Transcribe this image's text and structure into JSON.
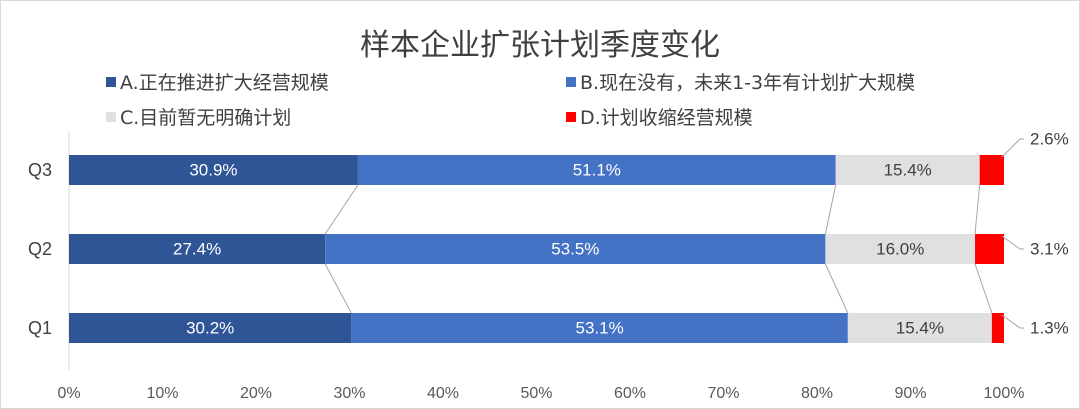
{
  "chart_data": {
    "type": "bar",
    "orientation": "horizontal",
    "stacked": true,
    "percent": true,
    "title": "样本企业扩张计划季度变化",
    "categories": [
      "Q3",
      "Q2",
      "Q1"
    ],
    "series": [
      {
        "name": "A.正在推进扩大经营规模",
        "color": "#2f5597",
        "values": [
          30.9,
          27.4,
          30.2
        ],
        "labels": [
          "30.9%",
          "27.4%",
          "30.2%"
        ]
      },
      {
        "name": "B.现在没有，未来1-3年有计划扩大规模",
        "color": "#4472c4",
        "values": [
          51.1,
          53.5,
          53.1
        ],
        "labels": [
          "51.1%",
          "53.5%",
          "53.1%"
        ]
      },
      {
        "name": "C.目前暂无明确计划",
        "color": "#e0e0e0",
        "values": [
          15.4,
          16.0,
          15.4
        ],
        "labels": [
          "15.4%",
          "16.0%",
          "15.4%"
        ]
      },
      {
        "name": "D.计划收缩经营规模",
        "color": "#ff0000",
        "values": [
          2.6,
          3.1,
          1.3
        ],
        "labels": [
          "2.6%",
          "3.1%",
          "1.3%"
        ]
      }
    ],
    "xlim": [
      0,
      100
    ],
    "xticks": [
      "0%",
      "10%",
      "20%",
      "30%",
      "40%",
      "50%",
      "60%",
      "70%",
      "80%",
      "90%",
      "100%"
    ],
    "legend_position": "top",
    "grid": false,
    "series_lines": true
  }
}
